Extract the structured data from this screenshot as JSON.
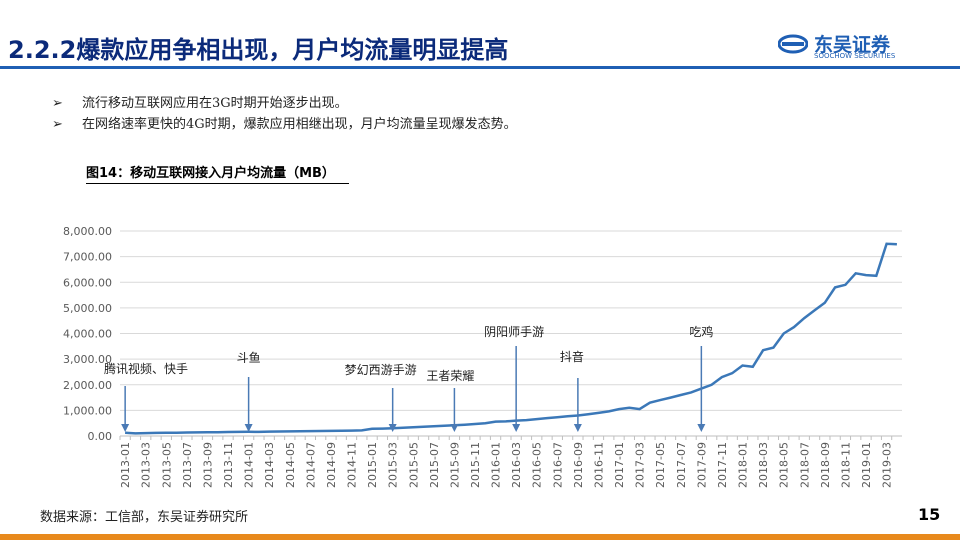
{
  "header": {
    "title": "2.2.2爆款应用争相出现，月户均流量明显提高",
    "logo": "东吴证券",
    "logo_en": "SOOCHOW SECURITIES"
  },
  "bullets": [
    "流行移动互联网应用在3G时期开始逐步出现。",
    "在网络速率更快的4G时期，爆款应用相继出现，月户均流量呈现爆发态势。"
  ],
  "chart_data": {
    "type": "line",
    "title": "图14：移动互联网接入月户均流量（MB）",
    "categories": [
      "2013-01",
      null,
      "2013-03",
      null,
      "2013-05",
      null,
      "2013-07",
      null,
      "2013-09",
      null,
      "2013-11",
      null,
      "2014-01",
      null,
      "2014-03",
      null,
      "2014-05",
      null,
      "2014-07",
      null,
      "2014-09",
      null,
      "2014-11",
      null,
      "2015-01",
      null,
      "2015-03",
      null,
      "2015-05",
      null,
      "2015-07",
      null,
      "2015-09",
      null,
      "2015-11",
      null,
      "2016-01",
      null,
      "2016-03",
      null,
      "2016-05",
      null,
      "2016-07",
      null,
      "2016-09",
      null,
      "2016-11",
      null,
      "2017-01",
      null,
      "2017-03",
      null,
      "2017-05",
      null,
      "2017-07",
      null,
      "2017-09",
      null,
      "2017-11",
      null,
      "2018-01",
      null,
      "2018-03",
      null,
      "2018-05",
      null,
      "2018-07",
      null,
      "2018-09",
      null,
      "2018-11",
      null,
      "2019-01",
      null,
      "2019-03",
      null
    ],
    "series": [
      {
        "name": "月户均流量",
        "color": "#3b78b8",
        "values": [
          130,
          100,
          115,
          120,
          125,
          130,
          135,
          140,
          145,
          150,
          155,
          160,
          165,
          160,
          170,
          175,
          180,
          185,
          190,
          195,
          200,
          205,
          210,
          220,
          280,
          290,
          300,
          320,
          340,
          360,
          380,
          400,
          420,
          440,
          470,
          500,
          560,
          570,
          600,
          620,
          660,
          700,
          730,
          770,
          800,
          850,
          900,
          960,
          1050,
          1100,
          1050,
          1300,
          1400,
          1500,
          1600,
          1700,
          1850,
          2000,
          2300,
          2450,
          2750,
          2700,
          3350,
          3450,
          4000,
          4250,
          4600,
          4900,
          5200,
          5800,
          5900,
          6350,
          6280,
          6250,
          7500,
          7480
        ]
      }
    ],
    "ylim": [
      0,
      8000
    ],
    "yticks": [
      {
        "value": 0,
        "label": "0.00"
      },
      {
        "value": 1000,
        "label": "1,000.00"
      },
      {
        "value": 2000,
        "label": "2,000.00"
      },
      {
        "value": 3000,
        "label": "3,000.00"
      },
      {
        "value": 4000,
        "label": "4,000.00"
      },
      {
        "value": 5000,
        "label": "5,000.00"
      },
      {
        "value": 6000,
        "label": "6,000.00"
      },
      {
        "value": 7000,
        "label": "7,000.00"
      },
      {
        "value": 8000,
        "label": "8,000.00"
      }
    ],
    "grid": true,
    "annotations": [
      {
        "text": "腾讯视频、快手",
        "x": "2013-01"
      },
      {
        "text": "斗鱼",
        "x": "2014-01"
      },
      {
        "text": "梦幻西游手游",
        "x": "2015-03"
      },
      {
        "text": "王者荣耀",
        "x": "2015-09"
      },
      {
        "text": "阴阳师手游",
        "x": "2016-03"
      },
      {
        "text": "抖音",
        "x": "2016-09"
      },
      {
        "text": "吃鸡",
        "x": "2017-09"
      }
    ]
  },
  "source": "数据来源：工信部，东吴证券研究所",
  "page_number": "15"
}
